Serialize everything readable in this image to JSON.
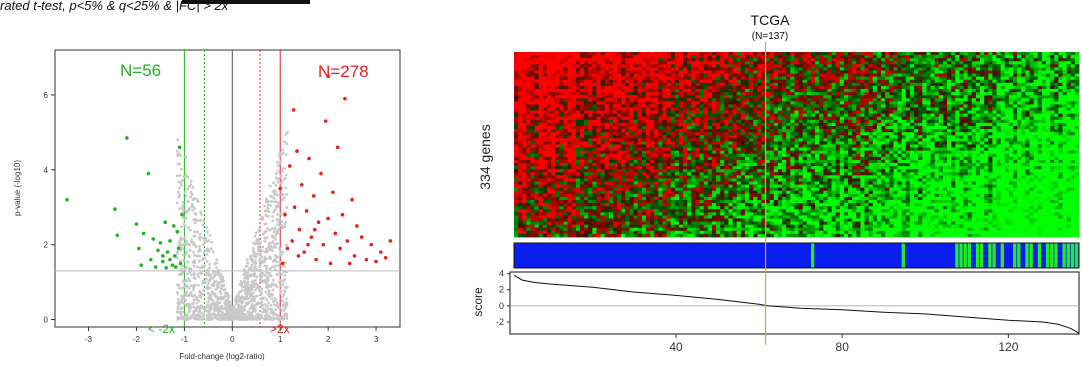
{
  "subtitle": "rated t-test, p<5% & q<25% & |FC| > 2x",
  "colors": {
    "down": "#22b322",
    "up": "#e8201c",
    "neutral": "#c8c8c8",
    "bar_blue": "#0a1ef0",
    "bar_green": "#22ee22",
    "orange": "#e8a040"
  },
  "chart_data": [
    {
      "type": "scatter",
      "name": "volcano",
      "xlabel": "Fold-change (log2-ratio)",
      "ylabel": "p-value (-log10)",
      "xlim": [
        -3.7,
        3.5
      ],
      "ylim": [
        -0.2,
        7.2
      ],
      "xticks": [
        -3,
        -2,
        -1,
        0,
        1,
        2,
        3
      ],
      "yticks": [
        0,
        2,
        4,
        6
      ],
      "thresholds": {
        "fc_low": -1,
        "fc_high": 1,
        "fc_dotted_low": -0.58,
        "fc_dotted_high": 0.58,
        "p": 1.3
      },
      "annotations": {
        "down_count": "N=56",
        "up_count": "N=278",
        "down_fc": "< -2x",
        "up_fc": ">2x"
      },
      "series": [
        {
          "name": "down",
          "points": [
            [
              -3.45,
              3.2
            ],
            [
              -2.2,
              4.85
            ],
            [
              -2.45,
              2.95
            ],
            [
              -2.4,
              2.25
            ],
            [
              -2.0,
              2.55
            ],
            [
              -1.95,
              1.9
            ],
            [
              -1.85,
              2.3
            ],
            [
              -1.75,
              3.9
            ],
            [
              -1.5,
              2.05
            ],
            [
              -1.45,
              1.55
            ],
            [
              -1.4,
              2.6
            ],
            [
              -1.35,
              1.8
            ],
            [
              -1.3,
              2.1
            ],
            [
              -1.25,
              1.45
            ],
            [
              -1.2,
              1.7
            ],
            [
              -1.15,
              2.35
            ],
            [
              -1.1,
              4.6
            ],
            [
              -1.08,
              1.5
            ],
            [
              -1.6,
              1.4
            ],
            [
              -1.7,
              1.6
            ],
            [
              -1.55,
              1.85
            ],
            [
              -1.9,
              1.45
            ],
            [
              -1.05,
              2.8
            ],
            [
              -1.12,
              1.9
            ],
            [
              -1.3,
              1.6
            ],
            [
              -1.45,
              1.7
            ],
            [
              -1.18,
              1.4
            ],
            [
              -1.65,
              2.15
            ],
            [
              -1.22,
              2.5
            ],
            [
              -1.38,
              1.38
            ]
          ]
        },
        {
          "name": "up",
          "points": [
            [
              1.0,
              3.5
            ],
            [
              1.1,
              2.8
            ],
            [
              1.2,
              4.1
            ],
            [
              1.25,
              2.1
            ],
            [
              1.3,
              3.0
            ],
            [
              1.35,
              4.5
            ],
            [
              1.4,
              2.4
            ],
            [
              1.45,
              3.6
            ],
            [
              1.5,
              1.8
            ],
            [
              1.55,
              2.9
            ],
            [
              1.6,
              4.3
            ],
            [
              1.65,
              2.2
            ],
            [
              1.7,
              3.3
            ],
            [
              1.75,
              1.6
            ],
            [
              1.8,
              2.6
            ],
            [
              1.85,
              3.9
            ],
            [
              1.9,
              2.0
            ],
            [
              1.95,
              5.3
            ],
            [
              2.0,
              2.7
            ],
            [
              2.05,
              1.5
            ],
            [
              2.1,
              3.4
            ],
            [
              2.15,
              2.3
            ],
            [
              2.2,
              4.6
            ],
            [
              2.25,
              1.9
            ],
            [
              2.3,
              2.8
            ],
            [
              2.35,
              5.9
            ],
            [
              2.4,
              2.1
            ],
            [
              2.5,
              3.2
            ],
            [
              2.55,
              1.7
            ],
            [
              2.6,
              2.5
            ],
            [
              2.7,
              2.2
            ],
            [
              2.8,
              1.6
            ],
            [
              2.9,
              2.0
            ],
            [
              3.0,
              1.55
            ],
            [
              3.1,
              1.8
            ],
            [
              3.2,
              1.65
            ],
            [
              3.3,
              2.1
            ],
            [
              2.0,
              6.5
            ],
            [
              1.15,
              1.9
            ],
            [
              1.28,
              5.6
            ],
            [
              1.05,
              1.5
            ],
            [
              1.58,
              2.0
            ],
            [
              1.72,
              2.4
            ],
            [
              2.45,
              1.5
            ],
            [
              1.38,
              1.7
            ]
          ]
        }
      ]
    },
    {
      "type": "heatmap",
      "name": "tcga-heatmap",
      "title": "TCGA",
      "subtitle": "(N=137)",
      "ylabel": "334 genes",
      "x_range": [
        1,
        137
      ],
      "split_at": 62,
      "green_bar_samples": [
        73,
        95,
        108,
        109,
        110,
        111,
        113,
        114,
        116,
        117,
        119,
        122,
        123,
        125,
        126,
        128,
        130,
        131,
        132,
        134,
        135,
        136,
        137
      ]
    },
    {
      "type": "line",
      "name": "score",
      "ylabel": "score",
      "ylim": [
        -3.5,
        4.2
      ],
      "yticks": [
        4,
        2,
        0,
        -2
      ],
      "xlim": [
        1,
        137
      ],
      "xticks": [
        40,
        80,
        120
      ],
      "x": [
        1,
        3,
        6,
        10,
        20,
        30,
        40,
        50,
        60,
        62,
        70,
        80,
        90,
        100,
        110,
        120,
        128,
        132,
        135,
        137
      ],
      "y": [
        3.8,
        3.2,
        2.9,
        2.7,
        2.3,
        1.7,
        1.3,
        0.8,
        0.2,
        0.0,
        -0.3,
        -0.5,
        -0.8,
        -1.0,
        -1.4,
        -1.8,
        -2.0,
        -2.3,
        -2.8,
        -3.4
      ]
    }
  ]
}
